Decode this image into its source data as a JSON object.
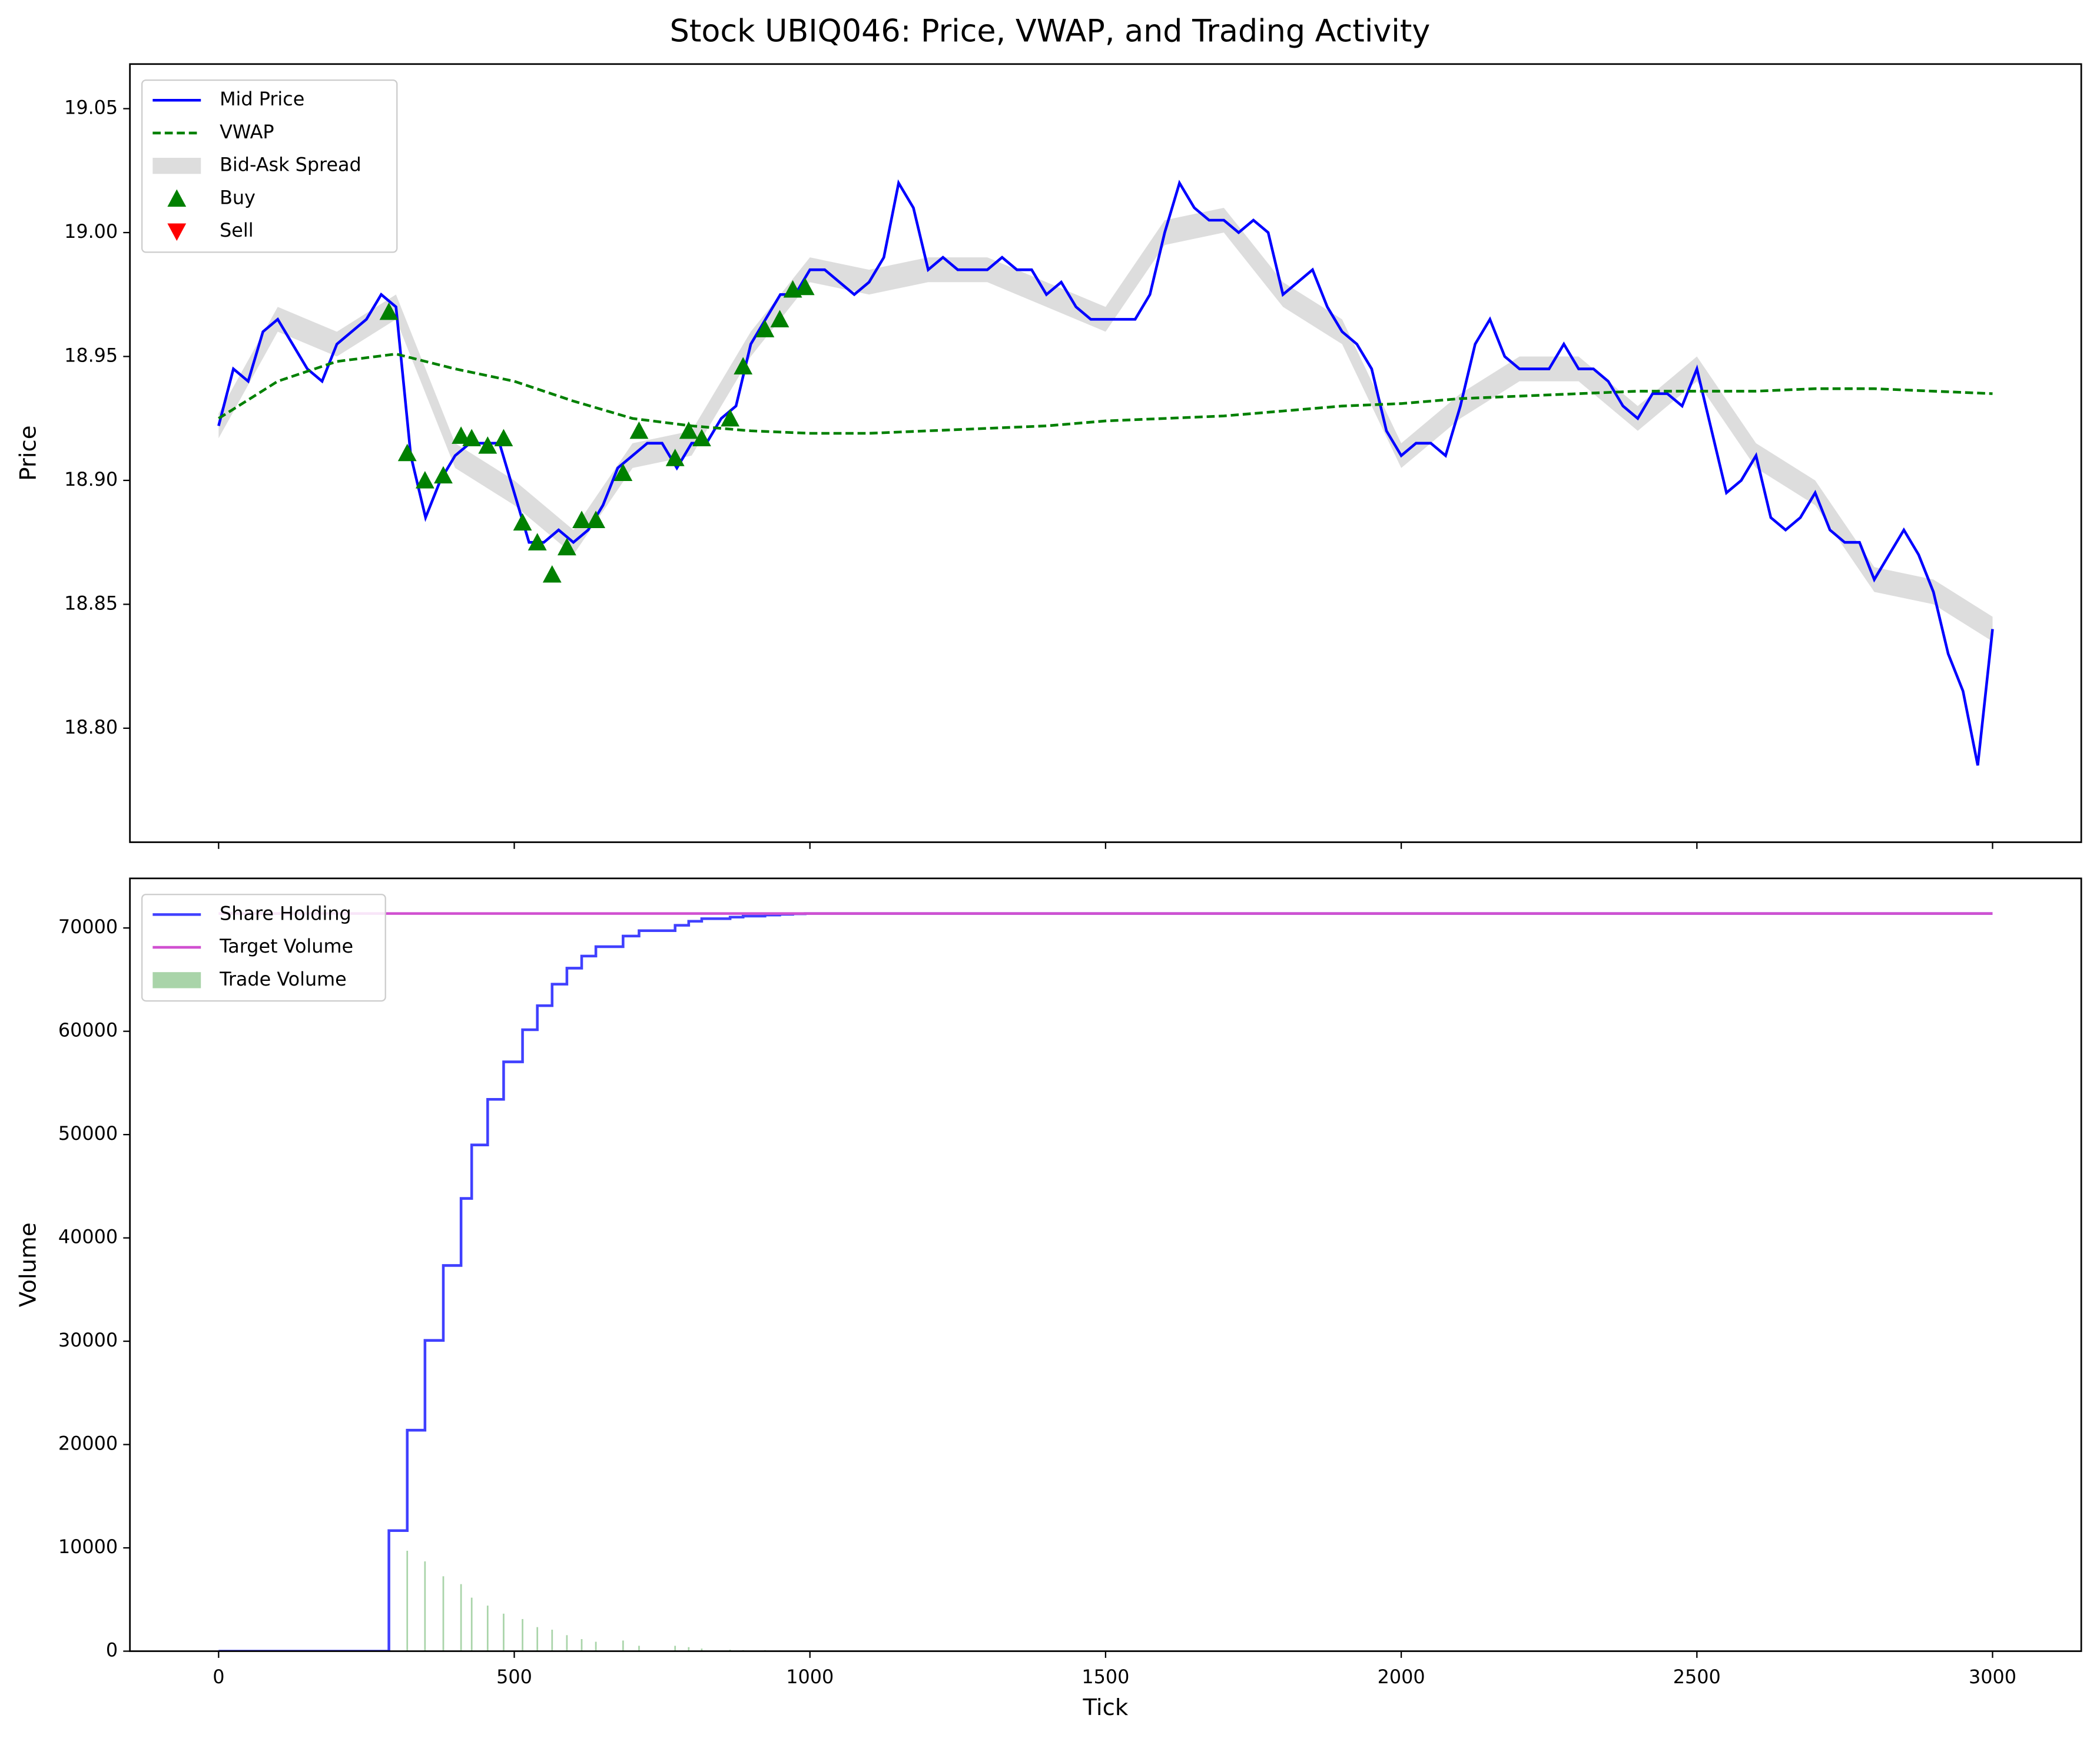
{
  "title": "Stock UBIQ046: Price, VWAP, and Trading Activity",
  "chart_data": [
    {
      "type": "line",
      "ylabel": "Price",
      "legend": "upper left",
      "xtick_labels": false,
      "xlim": [
        -150,
        3150
      ],
      "ylim": [
        18.754,
        19.068
      ],
      "xticks": [
        0,
        500,
        1000,
        1500,
        2000,
        2500,
        3000
      ],
      "yticks": [
        {
          "value": 18.8,
          "label": "18.80"
        },
        18.85,
        {
          "value": 18.9,
          "label": "18.90"
        },
        18.95,
        {
          "value": 19.0,
          "label": "19.00"
        },
        19.05
      ],
      "series": [
        {
          "name": "Mid Price",
          "type": "line",
          "color": "#0000ff",
          "x": [
            0,
            25,
            50,
            75,
            100,
            125,
            150,
            175,
            200,
            225,
            250,
            275,
            300,
            325,
            350,
            375,
            400,
            425,
            450,
            475,
            500,
            525,
            550,
            575,
            600,
            625,
            650,
            675,
            700,
            725,
            750,
            775,
            800,
            825,
            850,
            875,
            900,
            925,
            950,
            975,
            1000,
            1025,
            1050,
            1075,
            1100,
            1125,
            1150,
            1175,
            1200,
            1225,
            1250,
            1275,
            1300,
            1325,
            1350,
            1375,
            1400,
            1425,
            1450,
            1475,
            1500,
            1525,
            1550,
            1575,
            1600,
            1625,
            1650,
            1675,
            1700,
            1725,
            1750,
            1775,
            1800,
            1825,
            1850,
            1875,
            1900,
            1925,
            1950,
            1975,
            2000,
            2025,
            2050,
            2075,
            2100,
            2125,
            2150,
            2175,
            2200,
            2225,
            2250,
            2275,
            2300,
            2325,
            2350,
            2375,
            2400,
            2425,
            2450,
            2475,
            2500,
            2525,
            2550,
            2575,
            2600,
            2625,
            2650,
            2675,
            2700,
            2725,
            2750,
            2775,
            2800,
            2825,
            2850,
            2875,
            2900,
            2925,
            2950,
            2975,
            3000
          ],
          "values": [
            18.922,
            18.945,
            18.94,
            18.96,
            18.965,
            18.955,
            18.945,
            18.94,
            18.955,
            18.96,
            18.965,
            18.975,
            18.97,
            18.91,
            18.885,
            18.9,
            18.91,
            18.915,
            18.915,
            18.915,
            18.895,
            18.875,
            18.875,
            18.88,
            18.875,
            18.88,
            18.89,
            18.905,
            18.91,
            18.915,
            18.915,
            18.905,
            18.915,
            18.915,
            18.925,
            18.93,
            18.955,
            18.965,
            18.975,
            18.975,
            18.985,
            18.985,
            18.98,
            18.975,
            18.98,
            18.99,
            19.02,
            19.01,
            18.985,
            18.99,
            18.985,
            18.985,
            18.985,
            18.99,
            18.985,
            18.985,
            18.975,
            18.98,
            18.97,
            18.965,
            18.965,
            18.965,
            18.965,
            18.975,
            19.0,
            19.02,
            19.01,
            19.005,
            19.005,
            19.0,
            19.005,
            19.0,
            18.975,
            18.98,
            18.985,
            18.97,
            18.96,
            18.955,
            18.945,
            18.92,
            18.91,
            18.915,
            18.915,
            18.91,
            18.93,
            18.955,
            18.965,
            18.95,
            18.945,
            18.945,
            18.945,
            18.955,
            18.945,
            18.945,
            18.94,
            18.93,
            18.925,
            18.935,
            18.935,
            18.93,
            18.945,
            18.92,
            18.895,
            18.9,
            18.91,
            18.885,
            18.88,
            18.885,
            18.895,
            18.88,
            18.875,
            18.875,
            18.86,
            18.87,
            18.88,
            18.87,
            18.855,
            18.83,
            18.815,
            18.785,
            18.84
          ]
        },
        {
          "name": "VWAP",
          "type": "line",
          "dashed": true,
          "color": "#008000",
          "x": [
            0,
            100,
            200,
            300,
            400,
            500,
            600,
            700,
            800,
            900,
            1000,
            1100,
            1200,
            1300,
            1400,
            1500,
            1600,
            1700,
            1800,
            1900,
            2000,
            2100,
            2200,
            2300,
            2400,
            2500,
            2600,
            2700,
            2800,
            2900,
            3000
          ],
          "values": [
            18.925,
            18.94,
            18.948,
            18.951,
            18.945,
            18.94,
            18.932,
            18.925,
            18.922,
            18.92,
            18.919,
            18.919,
            18.92,
            18.921,
            18.922,
            18.924,
            18.925,
            18.926,
            18.928,
            18.93,
            18.931,
            18.933,
            18.934,
            18.935,
            18.936,
            18.936,
            18.936,
            18.937,
            18.937,
            18.936,
            18.935
          ]
        },
        {
          "name": "Bid-Ask Spread",
          "type": "band",
          "color": "#dddddd",
          "x": [
            0,
            100,
            200,
            300,
            400,
            500,
            600,
            700,
            800,
            900,
            1000,
            1100,
            1200,
            1300,
            1400,
            1500,
            1600,
            1700,
            1800,
            1900,
            2000,
            2100,
            2200,
            2300,
            2400,
            2500,
            2600,
            2700,
            2800,
            2900,
            3000
          ],
          "upper": [
            18.927,
            18.97,
            18.96,
            18.975,
            18.915,
            18.9,
            18.88,
            18.915,
            18.92,
            18.96,
            18.99,
            18.985,
            18.99,
            18.99,
            18.98,
            18.97,
            19.005,
            19.01,
            18.98,
            18.965,
            18.915,
            18.935,
            18.95,
            18.95,
            18.93,
            18.95,
            18.915,
            18.9,
            18.865,
            18.86,
            18.845
          ],
          "lower": [
            18.917,
            18.96,
            18.95,
            18.965,
            18.905,
            18.89,
            18.87,
            18.905,
            18.91,
            18.95,
            18.98,
            18.975,
            18.98,
            18.98,
            18.97,
            18.96,
            18.995,
            19.0,
            18.97,
            18.955,
            18.905,
            18.925,
            18.94,
            18.94,
            18.92,
            18.94,
            18.905,
            18.89,
            18.855,
            18.85,
            18.835
          ]
        },
        {
          "name": "Buy",
          "type": "scatter",
          "marker": "triangle-up",
          "color": "#008000",
          "x": [
            288,
            319,
            349,
            380,
            410,
            428,
            455,
            482,
            514,
            539,
            564,
            589,
            614,
            638,
            684,
            711,
            772,
            795,
            817,
            865,
            887,
            924,
            949,
            971,
            992
          ],
          "values": [
            18.968,
            18.911,
            18.9,
            18.902,
            18.918,
            18.917,
            18.914,
            18.917,
            18.883,
            18.875,
            18.862,
            18.873,
            18.884,
            18.884,
            18.903,
            18.92,
            18.909,
            18.92,
            18.917,
            18.925,
            18.946,
            18.961,
            18.965,
            18.977,
            18.978
          ]
        },
        {
          "name": "Sell",
          "type": "scatter",
          "marker": "triangle-down",
          "color": "#ff0000",
          "x": [],
          "values": []
        }
      ]
    },
    {
      "type": "line",
      "xlabel": "Tick",
      "ylabel": "Volume",
      "legend": "upper left",
      "xtick_labels": true,
      "xlim": [
        -150,
        3150
      ],
      "ylim": [
        0,
        74800
      ],
      "xticks": [
        0,
        500,
        1000,
        1500,
        2000,
        2500,
        3000
      ],
      "yticks": [
        0,
        10000,
        20000,
        30000,
        40000,
        50000,
        60000,
        70000
      ],
      "series": [
        {
          "name": "Share Holding",
          "type": "step",
          "color": "#4040ff",
          "x": [
            0,
            288,
            319,
            349,
            380,
            410,
            428,
            455,
            482,
            514,
            539,
            564,
            589,
            614,
            638,
            684,
            711,
            772,
            795,
            817,
            865,
            887,
            924,
            949,
            971,
            992,
            3000
          ],
          "values": [
            0,
            11670,
            21390,
            30080,
            37330,
            43820,
            49000,
            53410,
            57040,
            60150,
            62480,
            64560,
            66110,
            67280,
            68190,
            69220,
            69740,
            70260,
            70650,
            70900,
            71050,
            71150,
            71250,
            71320,
            71370,
            71400,
            71400
          ]
        },
        {
          "name": "Target Volume",
          "type": "line",
          "color": "#d050d0",
          "x": [
            0,
            3000
          ],
          "values": [
            71400,
            71400
          ]
        },
        {
          "name": "Trade Volume",
          "type": "bar",
          "color": "#a9d4a9",
          "x": [
            288,
            319,
            349,
            380,
            410,
            428,
            455,
            482,
            514,
            539,
            564,
            589,
            614,
            638,
            684,
            711,
            772,
            795,
            817,
            865,
            887,
            924,
            949,
            971,
            992
          ],
          "values": [
            11670,
            9720,
            8690,
            7250,
            6490,
            5180,
            4410,
            3630,
            3110,
            2330,
            2080,
            1550,
            1170,
            910,
            1030,
            520,
            520,
            390,
            250,
            150,
            100,
            100,
            70,
            50,
            30
          ]
        }
      ]
    }
  ]
}
